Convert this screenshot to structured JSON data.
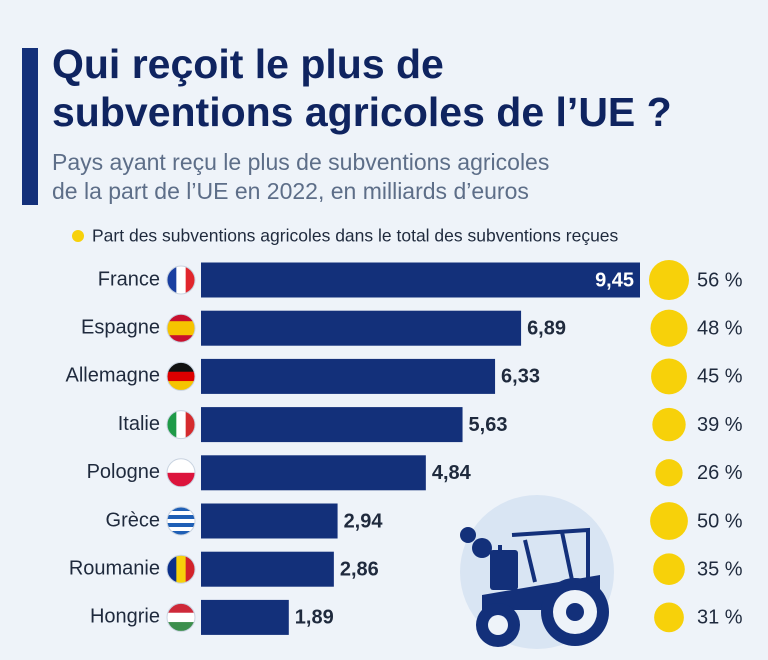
{
  "chart_data": {
    "type": "bar",
    "title": [
      "Qui reçoit le plus de",
      "subventions agricoles de l’UE ?"
    ],
    "subtitle": [
      "Pays ayant reçu le plus de subventions agricoles",
      "de la part de l’UE en 2022, en milliards d’euros"
    ],
    "categories": [
      "France",
      "Espagne",
      "Allemagne",
      "Italie",
      "Pologne",
      "Grèce",
      "Roumanie",
      "Hongrie"
    ],
    "series": [
      {
        "color": "#13307a",
        "values": [
          9.45,
          6.89,
          6.33,
          5.63,
          4.84,
          2.94,
          2.86,
          1.89
        ],
        "value_labels": [
          "9,45",
          "6,89",
          "6,33",
          "5,63",
          "4,84",
          "2,94",
          "2,86",
          "1,89"
        ]
      },
      {
        "name": "Part des subventions agricoles dans le total des subventions reçues",
        "color": "#f7d10a",
        "values": [
          56,
          48,
          45,
          39,
          26,
          50,
          35,
          31
        ],
        "value_labels": [
          "56 %",
          "48 %",
          "45 %",
          "39 %",
          "26 %",
          "50 %",
          "35 %",
          "31 %"
        ]
      }
    ]
  }
}
